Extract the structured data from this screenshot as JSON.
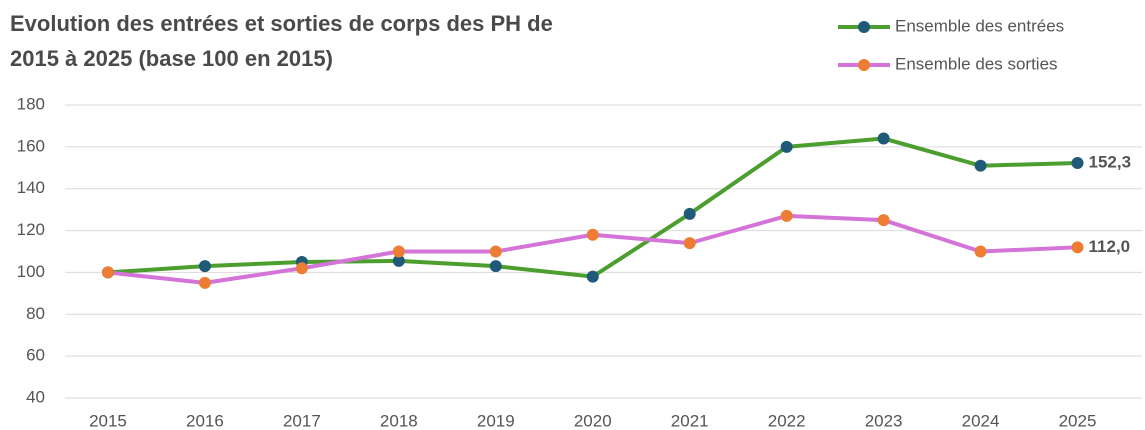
{
  "chart_data": {
    "type": "line",
    "title": [
      "Evolution des entrées et sorties de corps des PH de",
      "2015 à 2025 (base 100 en 2015)"
    ],
    "categories": [
      "2015",
      "2016",
      "2017",
      "2018",
      "2019",
      "2020",
      "2021",
      "2022",
      "2023",
      "2024",
      "2025"
    ],
    "series": [
      {
        "name": "Ensemble des entrées",
        "color": "#4c9e2f",
        "marker_color": "#1f5b78",
        "label_color": "#3c9a2a",
        "values": [
          100,
          103,
          105,
          105.5,
          103,
          98,
          128,
          160,
          164,
          151,
          152.3
        ],
        "value_labels": [
          null,
          null,
          null,
          null,
          null,
          null,
          null,
          null,
          null,
          null,
          "152,3"
        ]
      },
      {
        "name": "Ensemble des sorties",
        "color": "#d473d8",
        "marker_color": "#ee7d34",
        "label_color": "#8e1f8e",
        "values": [
          100,
          95,
          102,
          110,
          110,
          118,
          114,
          127,
          125,
          110,
          112.0
        ],
        "value_labels": [
          null,
          null,
          null,
          null,
          null,
          null,
          null,
          null,
          null,
          null,
          "112,0"
        ]
      }
    ],
    "ylim": [
      40,
      180
    ],
    "yticks": [
      40,
      60,
      80,
      100,
      120,
      140,
      160,
      180
    ],
    "grid": true,
    "legend": "top-right"
  }
}
